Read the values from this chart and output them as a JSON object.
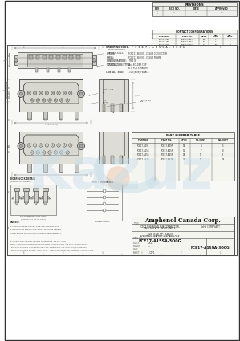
{
  "bg_color": "#ffffff",
  "page_bg": "#f8f8f6",
  "border_color": "#aaaaaa",
  "line_color": "#666666",
  "dim_color": "#888888",
  "text_color": "#333333",
  "light_blue1": "#b8d4e8",
  "light_blue2": "#7ab0cc",
  "orange_wm": "#d4884a",
  "watermark_color": "#c8dce8",
  "watermark_alpha": 0.45,
  "title": "Amphenol Canada Corp.",
  "part_number": "FCE17-A15SA-3O0G",
  "part_desc": "FCEC17 SERIES D-SUB CONNECTOR, PIN & SOCKET, RIGHT ANGLE .318 [8.08] F/P, PLASTIC MOUNTING BRACKET & BOARDLOCK , RoHS COMPLIANT",
  "drawing_number_display": "FCE17-A15SA-3O0G",
  "rev": "C",
  "sheet": "1 OF 1",
  "scale": "FULL",
  "conn_fill": "#e0e0d8",
  "conn_edge": "#555555",
  "shell_fill": "#d8d8d0",
  "pin_fill": "#c8c8c0",
  "bracket_fill": "#d0d0c8",
  "side_fill": "#ddddd5",
  "table_header_bg": "#e8e8e0",
  "table_alt_bg": "#f0f0ec",
  "title_block_bg": "#f5f5f0",
  "rev_block_bg": "#eeeeea"
}
